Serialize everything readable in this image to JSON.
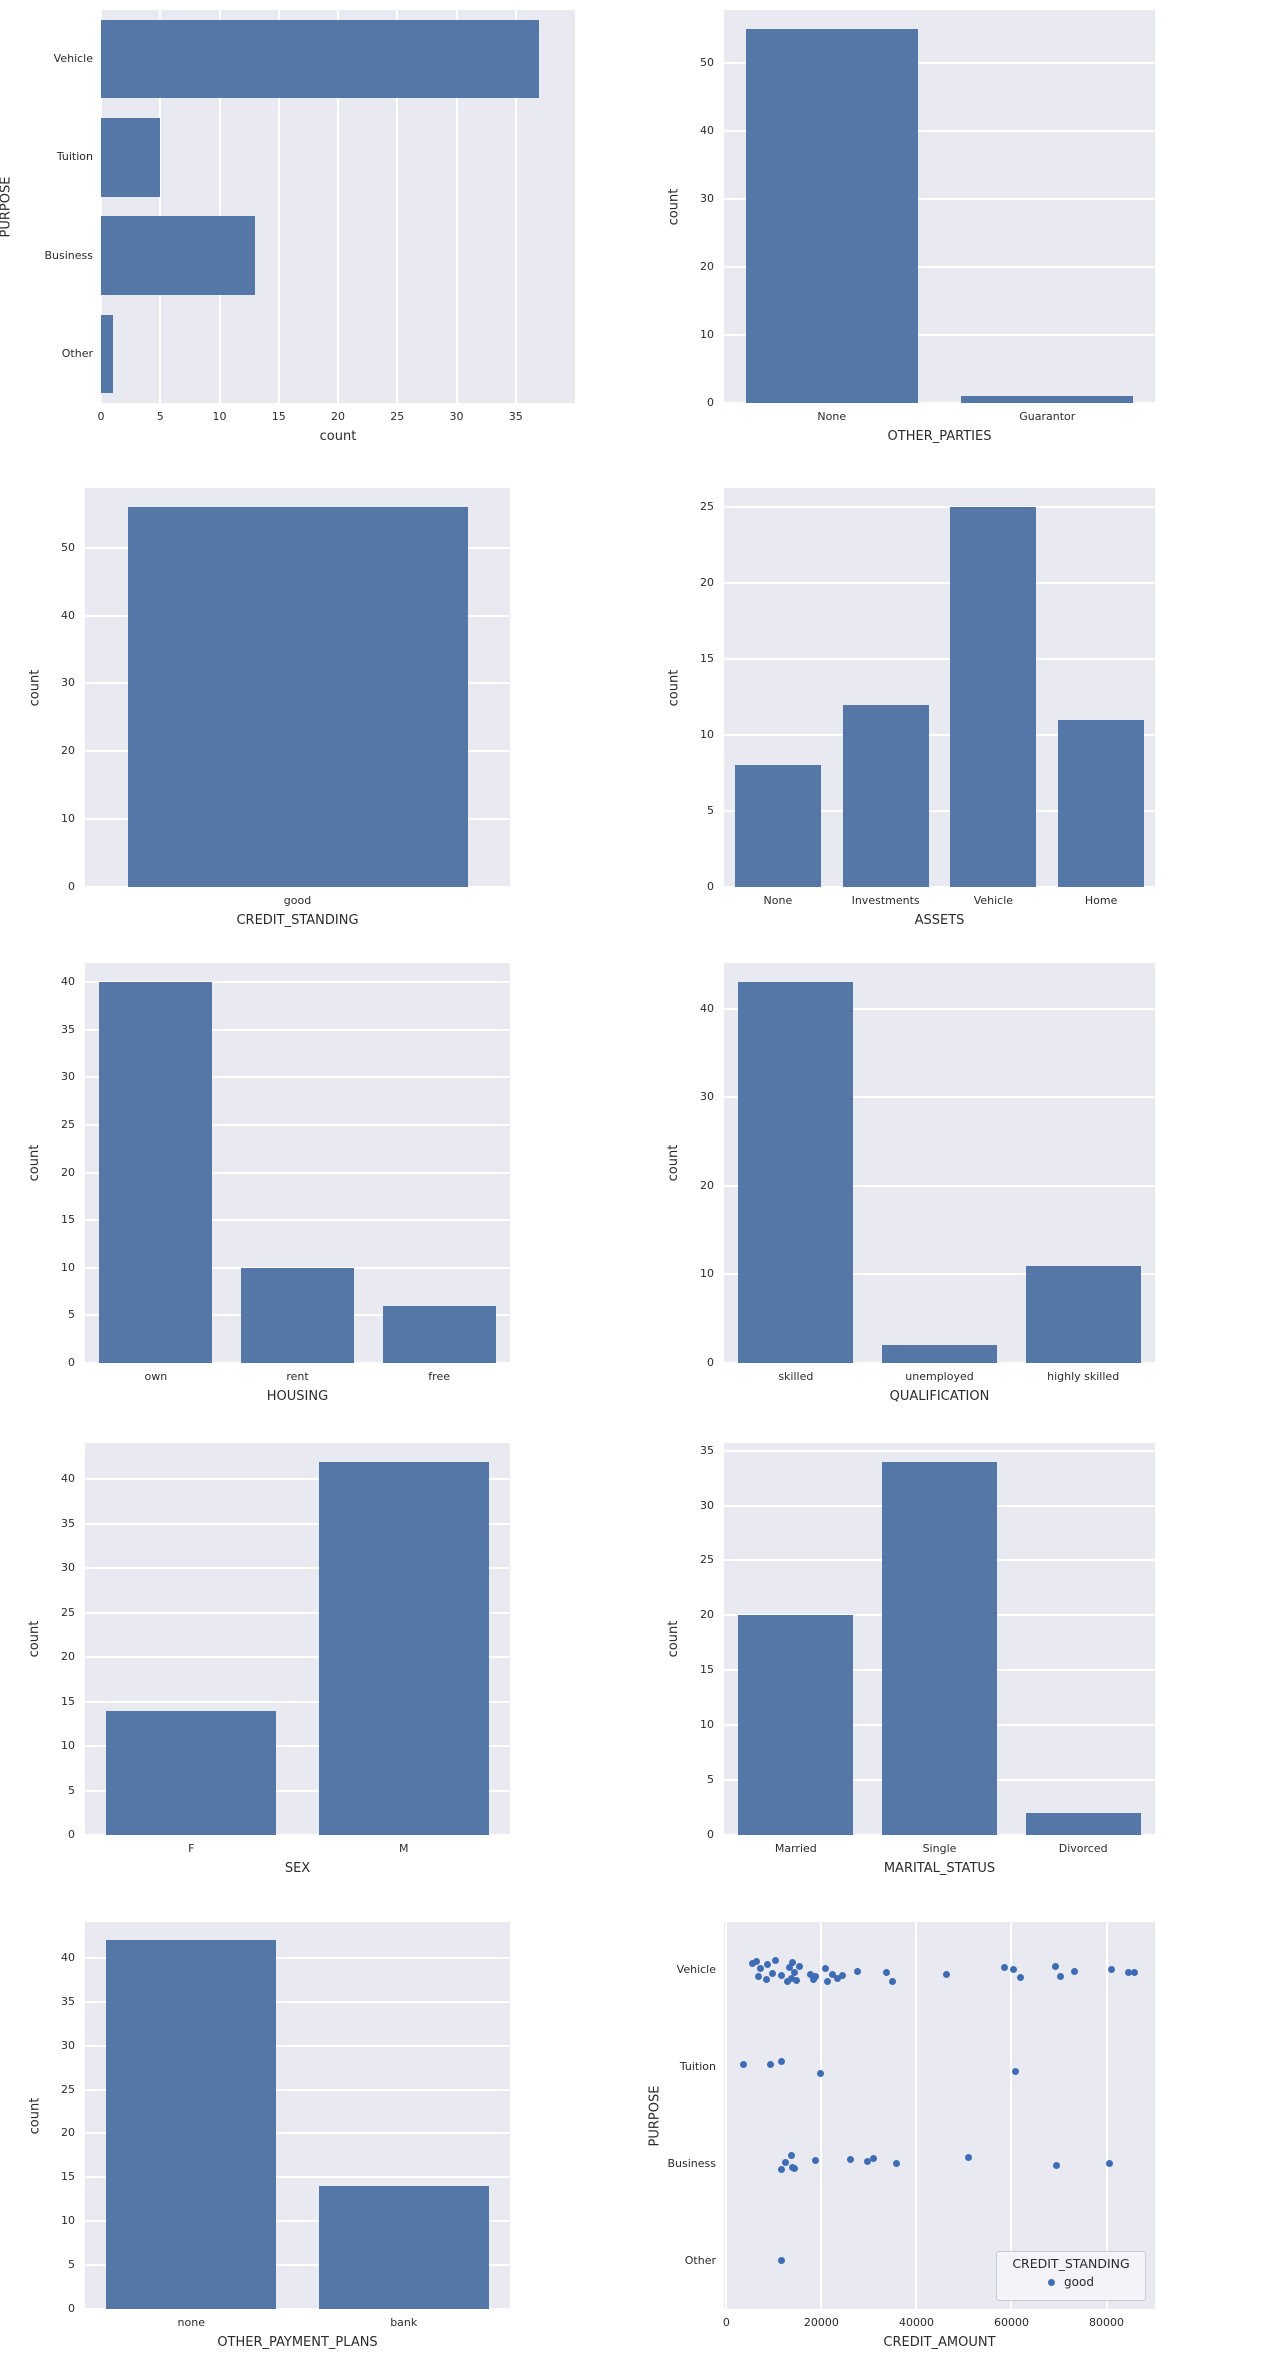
{
  "figure": {
    "background": "#ffffff",
    "axes_background": "#e9e9f1",
    "grid_color": "#ffffff",
    "bar_color": "#5577a8",
    "dot_color": "#3e6cb5",
    "text_color": "#2b2b2b"
  },
  "chart_data": [
    {
      "type": "bar",
      "orientation": "horizontal",
      "categories": [
        "Vehicle",
        "Tuition",
        "Business",
        "Other"
      ],
      "values": [
        37,
        5,
        13,
        1
      ],
      "xlabel": "count",
      "ylabel": "PURPOSE",
      "xticks": [
        0,
        5,
        10,
        15,
        20,
        25,
        30,
        35
      ],
      "xlim": [
        0,
        40
      ],
      "grid": true
    },
    {
      "type": "bar",
      "orientation": "vertical",
      "categories": [
        "None",
        "Guarantor"
      ],
      "values": [
        55,
        1
      ],
      "xlabel": "OTHER_PARTIES",
      "ylabel": "count",
      "yticks": [
        0,
        10,
        20,
        30,
        40,
        50
      ],
      "ylim": [
        0,
        57.75
      ],
      "grid": true
    },
    {
      "type": "bar",
      "orientation": "vertical",
      "categories": [
        "good"
      ],
      "values": [
        56
      ],
      "xlabel": "CREDIT_STANDING",
      "ylabel": "count",
      "yticks": [
        0,
        10,
        20,
        30,
        40,
        50
      ],
      "ylim": [
        0,
        58.8
      ],
      "grid": true
    },
    {
      "type": "bar",
      "orientation": "vertical",
      "categories": [
        "None",
        "Investments",
        "Vehicle",
        "Home"
      ],
      "values": [
        8,
        12,
        25,
        11
      ],
      "xlabel": "ASSETS",
      "ylabel": "count",
      "yticks": [
        0,
        5,
        10,
        15,
        20,
        25
      ],
      "ylim": [
        0,
        26.25
      ],
      "grid": true
    },
    {
      "type": "bar",
      "orientation": "vertical",
      "categories": [
        "own",
        "rent",
        "free"
      ],
      "values": [
        40,
        10,
        6
      ],
      "xlabel": "HOUSING",
      "ylabel": "count",
      "yticks": [
        0,
        5,
        10,
        15,
        20,
        25,
        30,
        35,
        40
      ],
      "ylim": [
        0,
        42
      ],
      "grid": true
    },
    {
      "type": "bar",
      "orientation": "vertical",
      "categories": [
        "skilled",
        "unemployed",
        "highly skilled"
      ],
      "values": [
        43,
        2,
        11
      ],
      "xlabel": "QUALIFICATION",
      "ylabel": "count",
      "yticks": [
        0,
        10,
        20,
        30,
        40
      ],
      "ylim": [
        0,
        45.15
      ],
      "grid": true
    },
    {
      "type": "bar",
      "orientation": "vertical",
      "categories": [
        "F",
        "M"
      ],
      "values": [
        14,
        42
      ],
      "xlabel": "SEX",
      "ylabel": "count",
      "yticks": [
        0,
        5,
        10,
        15,
        20,
        25,
        30,
        35,
        40
      ],
      "ylim": [
        0,
        44.1
      ],
      "grid": true
    },
    {
      "type": "bar",
      "orientation": "vertical",
      "categories": [
        "Married",
        "Single",
        "Divorced"
      ],
      "values": [
        20,
        34,
        2
      ],
      "xlabel": "MARITAL_STATUS",
      "ylabel": "count",
      "yticks": [
        0,
        5,
        10,
        15,
        20,
        25,
        30,
        35
      ],
      "ylim": [
        0,
        35.7
      ],
      "grid": true
    },
    {
      "type": "bar",
      "orientation": "vertical",
      "categories": [
        "none",
        "bank"
      ],
      "values": [
        42,
        14
      ],
      "xlabel": "OTHER_PAYMENT_PLANS",
      "ylabel": "count",
      "yticks": [
        0,
        5,
        10,
        15,
        20,
        25,
        30,
        35,
        40
      ],
      "ylim": [
        0,
        44.1
      ],
      "grid": true
    },
    {
      "type": "strip",
      "categories": [
        "Vehicle",
        "Tuition",
        "Business",
        "Other"
      ],
      "xlabel": "CREDIT_AMOUNT",
      "ylabel": "PURPOSE",
      "xticks": [
        0,
        20000,
        40000,
        60000,
        80000
      ],
      "xlim": [
        -500,
        90200
      ],
      "grid": true,
      "series": [
        {
          "name": "good",
          "points": [
            [
              [
                5400,
                -0.55
              ],
              [
                6300,
                -0.75
              ],
              [
                6800,
                0.55
              ],
              [
                7200,
                -0.15
              ],
              [
                8400,
                0.75
              ],
              [
                8700,
                -0.45
              ],
              [
                9800,
                0.25
              ],
              [
                10400,
                -0.85
              ],
              [
                11700,
                0.45
              ],
              [
                12900,
                0.95
              ],
              [
                13200,
                -0.25
              ],
              [
                13700,
                0.65
              ],
              [
                13900,
                -0.65
              ],
              [
                14300,
                0.15
              ],
              [
                14800,
                0.85
              ],
              [
                15300,
                -0.35
              ],
              [
                17800,
                0.35
              ],
              [
                18300,
                0.75
              ],
              [
                18700,
                0.55
              ],
              [
                20900,
                -0.15
              ],
              [
                21300,
                0.95
              ],
              [
                22300,
                0.35
              ],
              [
                23300,
                0.65
              ],
              [
                24400,
                0.45
              ],
              [
                27500,
                0.1
              ],
              [
                33800,
                0.2
              ],
              [
                35000,
                0.9
              ],
              [
                46300,
                0.35
              ],
              [
                58500,
                -0.2
              ],
              [
                60500,
                -0.1
              ],
              [
                61800,
                0.6
              ],
              [
                69300,
                -0.3
              ],
              [
                70300,
                0.5
              ],
              [
                73200,
                0.1
              ],
              [
                81100,
                -0.1
              ],
              [
                84600,
                0.2
              ],
              [
                85800,
                0.15
              ]
            ],
            [
              [
                3700,
                -0.2
              ],
              [
                9300,
                -0.25
              ],
              [
                11700,
                -0.5
              ],
              [
                19900,
                0.55
              ],
              [
                60800,
                0.35
              ]
            ],
            [
              [
                11600,
                0.5
              ],
              [
                12500,
                -0.1
              ],
              [
                13700,
                -0.7
              ],
              [
                13900,
                0.3
              ],
              [
                14400,
                0.35
              ],
              [
                18800,
                -0.25
              ],
              [
                26100,
                -0.35
              ],
              [
                29600,
                -0.2
              ],
              [
                30900,
                -0.45
              ],
              [
                35700,
                0.0
              ],
              [
                51000,
                -0.55
              ],
              [
                69500,
                0.1
              ],
              [
                80600,
                0.0
              ]
            ],
            [
              [
                11600,
                0.0
              ]
            ]
          ]
        }
      ],
      "legend": {
        "title": "CREDIT_STANDING",
        "entries": [
          "good"
        ],
        "position": "lower right"
      }
    }
  ]
}
